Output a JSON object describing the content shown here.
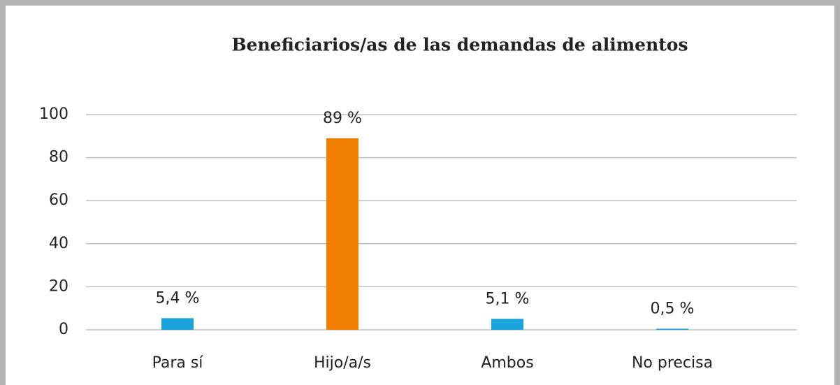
{
  "chart_data": {
    "type": "bar",
    "title": "Beneficiarios/as de las demandas de alimentos",
    "categories": [
      "Para sí",
      "Hijo/a/s",
      "Ambos",
      "No precisa"
    ],
    "values": [
      5.4,
      89,
      5.1,
      0.5
    ],
    "value_labels": [
      "5,4 %",
      "89 %",
      "5,1 %",
      "0,5 %"
    ],
    "colors": [
      "#1aa3dc",
      "#ef7d00",
      "#1aa3dc",
      "#1aa3dc"
    ],
    "ylim": [
      0,
      100
    ],
    "yticks": [
      0,
      20,
      40,
      60,
      80,
      100
    ],
    "grid": true
  }
}
